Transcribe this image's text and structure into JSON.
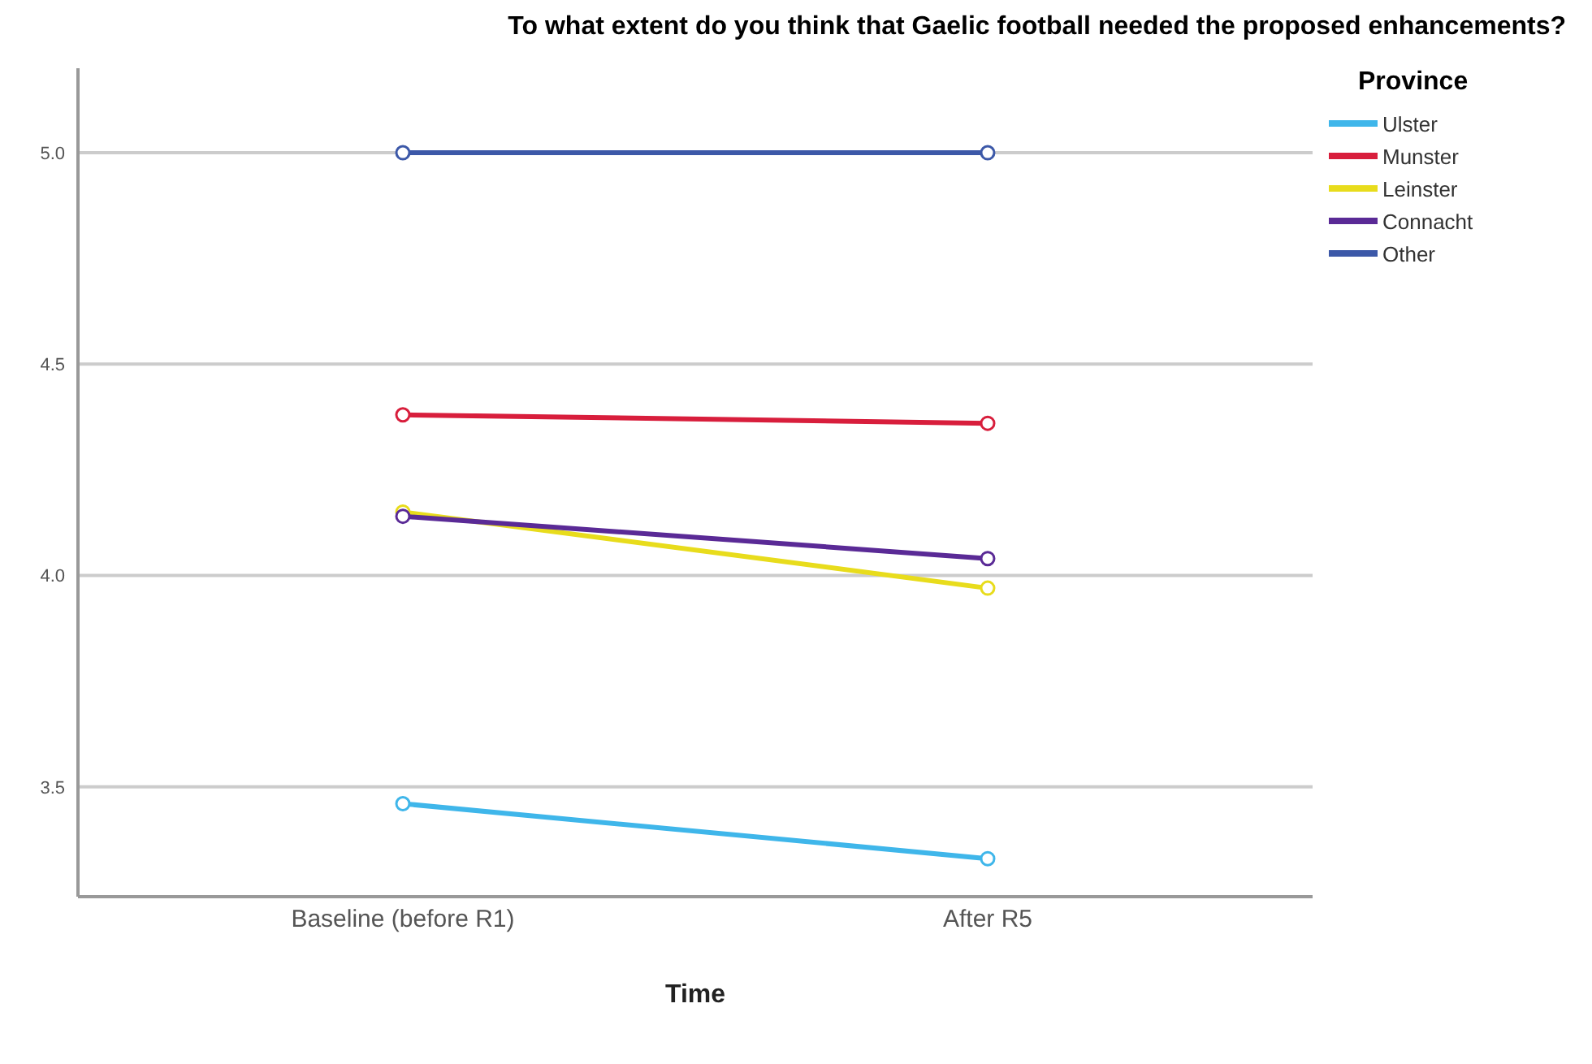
{
  "chart_data": {
    "type": "line",
    "title": "To what extent do you think that Gaelic football needed the proposed enhancements?",
    "xlabel": "Time",
    "legend_title": "Province",
    "categories": [
      "Baseline (before R1)",
      "After R5"
    ],
    "series": [
      {
        "name": "Ulster",
        "color": "#3fb6ea",
        "values": [
          3.46,
          3.33
        ]
      },
      {
        "name": "Munster",
        "color": "#d81e3c",
        "values": [
          4.38,
          4.36
        ]
      },
      {
        "name": "Leinster",
        "color": "#e8dc1c",
        "values": [
          4.15,
          3.97
        ]
      },
      {
        "name": "Connacht",
        "color": "#5a2a96",
        "values": [
          4.14,
          4.04
        ]
      },
      {
        "name": "Other",
        "color": "#3c58a8",
        "values": [
          5.0,
          5.0
        ]
      }
    ],
    "ylim": [
      3.24,
      5.2
    ],
    "yticks": [
      3.5,
      {
        "value": 4,
        "label": "4.0"
      },
      4.5,
      {
        "value": 5,
        "label": "5.0"
      }
    ],
    "grid": "y",
    "legend": "top right",
    "marker": "circle",
    "line_style": "solid"
  }
}
